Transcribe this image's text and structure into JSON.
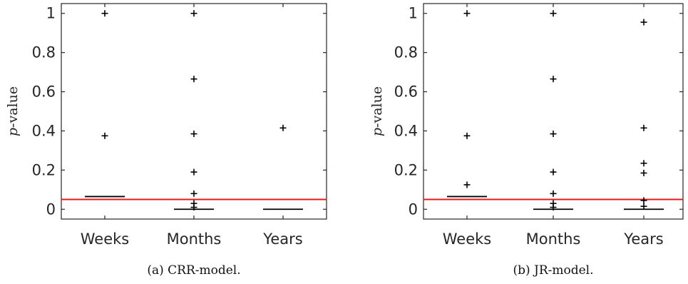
{
  "chart_data": [
    {
      "type": "boxplot",
      "caption": "(a) CRR-model.",
      "ylabel_italic": "p",
      "ylabel_rest": "-value",
      "categories": [
        "Weeks",
        "Months",
        "Years"
      ],
      "yticks": [
        "0",
        "0.2",
        "0.4",
        "0.6",
        "0.8",
        "1"
      ],
      "ylim": [
        -0.05,
        1.05
      ],
      "threshold": 0.05,
      "threshold_color": "#e41a1c",
      "medians": [
        0.065,
        0.0,
        0.0
      ],
      "outliers": [
        [
          1.0,
          0.375
        ],
        [
          1.0,
          0.665,
          0.385,
          0.19,
          0.08,
          0.03,
          0.01
        ],
        [
          0.415
        ]
      ]
    },
    {
      "type": "boxplot",
      "caption": "(b) JR-model.",
      "ylabel_italic": "p",
      "ylabel_rest": "-value",
      "categories": [
        "Weeks",
        "Months",
        "Years"
      ],
      "yticks": [
        "0",
        "0.2",
        "0.4",
        "0.6",
        "0.8",
        "1"
      ],
      "ylim": [
        -0.05,
        1.05
      ],
      "threshold": 0.05,
      "threshold_color": "#e41a1c",
      "medians": [
        0.065,
        0.0,
        0.0
      ],
      "outliers": [
        [
          1.0,
          0.375,
          0.125
        ],
        [
          1.0,
          0.665,
          0.385,
          0.19,
          0.08,
          0.03,
          0.01
        ],
        [
          0.955,
          0.415,
          0.235,
          0.185,
          0.045,
          0.015
        ]
      ]
    }
  ]
}
